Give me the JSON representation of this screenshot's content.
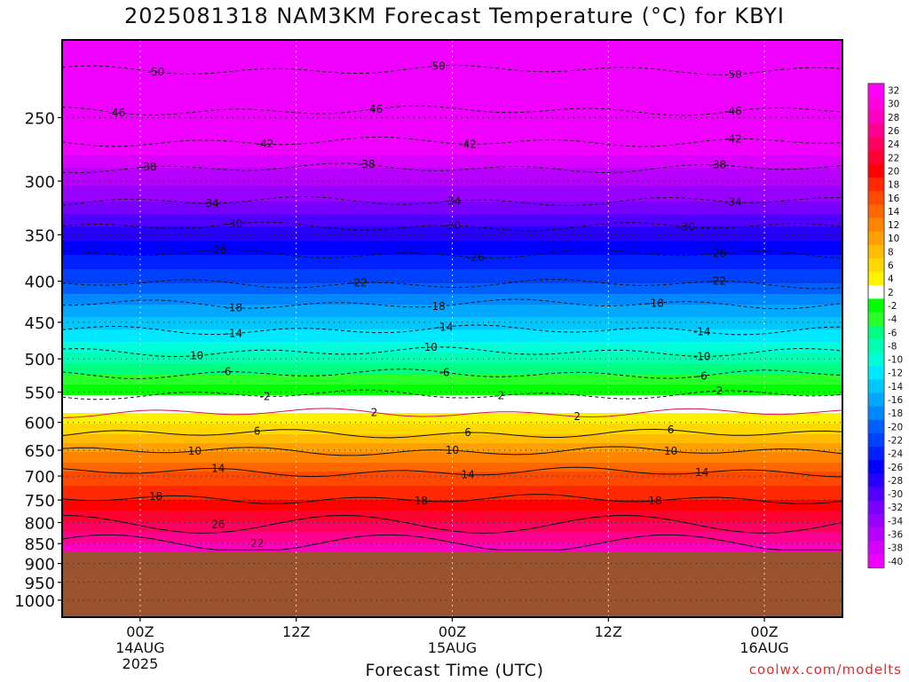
{
  "title": "2025081318 NAM3KM Forecast Temperature (°C) for KBYI",
  "credit": "coolwx.com/modelts",
  "chart_data": {
    "type": "heatmap",
    "title": "2025081318 NAM3KM Forecast Temperature (°C) for KBYI",
    "xlabel": "Forecast Time (UTC)",
    "ylabel": "",
    "xlim_hours": [
      -5,
      45
    ],
    "x_ticks": [
      {
        "hour": 0,
        "lines": [
          "00Z",
          "14AUG",
          "2025"
        ]
      },
      {
        "hour": 10,
        "lines": [
          "12Z"
        ]
      },
      {
        "hour": 20,
        "lines": [
          "00Z",
          "15AUG"
        ]
      },
      {
        "hour": 30,
        "lines": [
          "12Z"
        ]
      },
      {
        "hour": 40,
        "lines": [
          "00Z",
          "16AUG"
        ]
      }
    ],
    "y_axis": {
      "scale": "log",
      "reversed": true,
      "ylim": [
        200,
        1050
      ],
      "ticks": [
        250,
        300,
        350,
        400,
        450,
        500,
        550,
        600,
        650,
        700,
        750,
        800,
        850,
        900,
        950,
        1000
      ]
    },
    "ground_level_hpa": 870,
    "ground_color": "#9a522f",
    "grid": true,
    "colorbar": {
      "levels": [
        "32",
        "30",
        "28",
        "26",
        "24",
        "22",
        "20",
        "18",
        "16",
        "14",
        "12",
        "10",
        "8",
        "6",
        "4",
        "2",
        "-2",
        "-4",
        "-6",
        "-8",
        "-10",
        "-12",
        "-14",
        "-16",
        "-18",
        "-20",
        "-22",
        "-24",
        "-26",
        "-28",
        "-30",
        "-32",
        "-34",
        "-36",
        "-38",
        "-40"
      ],
      "colors": [
        "#ff00ff",
        "#ff00e0",
        "#ff00c0",
        "#ff0090",
        "#ff0060",
        "#ff0030",
        "#ff0000",
        "#ff2800",
        "#ff4800",
        "#ff6600",
        "#ff8400",
        "#ffa000",
        "#ffbc00",
        "#ffd800",
        "#fff200",
        "#ffffff",
        "#00ff00",
        "#28ff28",
        "#00ff80",
        "#00ffb0",
        "#00ffd8",
        "#00e8ff",
        "#00c8ff",
        "#00a8ff",
        "#0088ff",
        "#0060ff",
        "#0040ff",
        "#0020ff",
        "#0000ff",
        "#2800ff",
        "#5000ff",
        "#7800ff",
        "#9800ff",
        "#b800ff",
        "#d800ff",
        "#f000ff"
      ]
    },
    "isotherms": [
      {
        "value": -50,
        "hpa": 218,
        "labels_at_hours": [
          1,
          19,
          38
        ]
      },
      {
        "value": -46,
        "hpa": 245,
        "labels_at_hours": [
          -1.5,
          15,
          38
        ]
      },
      {
        "value": -42,
        "hpa": 268,
        "labels_at_hours": [
          8,
          21,
          38
        ]
      },
      {
        "value": -38,
        "hpa": 289,
        "labels_at_hours": [
          0.5,
          14.5,
          37
        ]
      },
      {
        "value": -34,
        "hpa": 318,
        "labels_at_hours": [
          4.5,
          20,
          38
        ]
      },
      {
        "value": -30,
        "hpa": 342,
        "labels_at_hours": [
          6,
          20,
          35
        ]
      },
      {
        "value": -26,
        "hpa": 370,
        "labels_at_hours": [
          5,
          21.5,
          37
        ]
      },
      {
        "value": -22,
        "hpa": 403,
        "labels_at_hours": [
          14,
          37
        ]
      },
      {
        "value": -18,
        "hpa": 427,
        "labels_at_hours": [
          6,
          19,
          33
        ]
      },
      {
        "value": -14,
        "hpa": 460,
        "labels_at_hours": [
          6,
          19.5,
          36
        ]
      },
      {
        "value": -10,
        "hpa": 490,
        "labels_at_hours": [
          3.5,
          18.5,
          36
        ]
      },
      {
        "value": -6,
        "hpa": 522,
        "labels_at_hours": [
          5.5,
          19.5,
          36
        ]
      },
      {
        "value": -2,
        "hpa": 554,
        "labels_at_hours": [
          8,
          23,
          37
        ]
      },
      {
        "value": 2,
        "hpa": 584,
        "labels_at_hours": [
          15,
          28
        ]
      },
      {
        "value": 6,
        "hpa": 620,
        "labels_at_hours": [
          7.5,
          21,
          34
        ]
      },
      {
        "value": 10,
        "hpa": 652,
        "labels_at_hours": [
          3.5,
          20,
          34
        ]
      },
      {
        "value": 14,
        "hpa": 692,
        "labels_at_hours": [
          5,
          21,
          36
        ]
      },
      {
        "value": 18,
        "hpa": 748,
        "labels_at_hours": [
          1,
          18,
          33
        ]
      },
      {
        "value": 22,
        "hpa": 850,
        "labels_at_hours": [
          7.5
        ]
      },
      {
        "value": 26,
        "hpa": 804,
        "labels_at_hours": [
          5
        ]
      }
    ]
  }
}
